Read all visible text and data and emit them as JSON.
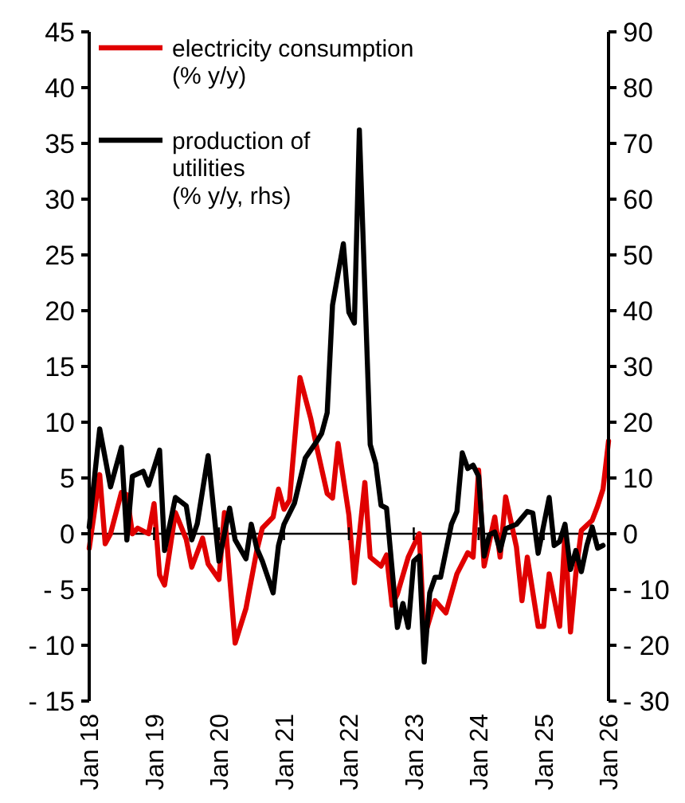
{
  "chart_data": {
    "type": "line",
    "legend": "top left",
    "grid": false,
    "marker": "none",
    "line_style": "solid",
    "xlim": [
      "2018-01",
      "2026-01"
    ],
    "xticks": [
      {
        "value": "2018-01",
        "label": "Jan 18"
      },
      {
        "value": "2019-01",
        "label": "Jan 19"
      },
      {
        "value": "2020-01",
        "label": "Jan 20"
      },
      {
        "value": "2021-01",
        "label": "Jan 21"
      },
      {
        "value": "2022-01",
        "label": "Jan 22"
      },
      {
        "value": "2023-01",
        "label": "Jan 23"
      },
      {
        "value": "2024-01",
        "label": "Jan 24"
      },
      {
        "value": "2025-01",
        "label": "Jan 25"
      },
      {
        "value": "2026-01",
        "label": "Jan 26"
      }
    ],
    "ylim": [
      -15,
      45
    ],
    "yticks": [
      {
        "value": -15,
        "label": "- 15"
      },
      {
        "value": -10,
        "label": "- 10"
      },
      {
        "value": -5,
        "label": "- 5"
      },
      0,
      5,
      10,
      15,
      20,
      25,
      30,
      35,
      40,
      45
    ],
    "y2lim": [
      -30,
      90
    ],
    "y2ticks": [
      {
        "value": -30,
        "label": "- 30"
      },
      {
        "value": -20,
        "label": "- 20"
      },
      {
        "value": -10,
        "label": "- 10"
      },
      0,
      10,
      20,
      30,
      40,
      50,
      60,
      70,
      80,
      90
    ],
    "ref_lines": [
      {
        "axis": "y",
        "value": 0,
        "color": "#000000"
      }
    ],
    "series": [
      {
        "name": "electricity consumption\n(% y/y)",
        "color": "#e00000",
        "x": [
          "2018-01",
          "2018-03",
          "2018-04",
          "2018-05",
          "2018-07",
          "2018-08",
          "2018-09",
          "2018-10",
          "2018-12",
          "2019-01",
          "2019-02",
          "2019-03",
          "2019-05",
          "2019-07",
          "2019-08",
          "2019-10",
          "2019-11",
          "2020-01",
          "2020-02",
          "2020-04",
          "2020-06",
          "2020-08",
          "2020-09",
          "2020-11",
          "2020-12",
          "2021-01",
          "2021-02",
          "2021-04",
          "2021-06",
          "2021-07",
          "2021-09",
          "2021-10",
          "2021-11",
          "2022-01",
          "2022-02",
          "2022-04",
          "2022-05",
          "2022-07",
          "2022-08",
          "2022-09",
          "2022-10",
          "2022-12",
          "2023-02",
          "2023-03",
          "2023-05",
          "2023-07",
          "2023-09",
          "2023-11",
          "2023-12",
          "2024-01",
          "2024-02",
          "2024-04",
          "2024-05",
          "2024-06",
          "2024-08",
          "2024-09",
          "2024-10",
          "2024-12",
          "2025-01",
          "2025-02",
          "2025-04",
          "2025-05",
          "2025-06",
          "2025-07",
          "2025-08",
          "2025-10",
          "2025-11",
          "2025-12",
          "2026-01"
        ],
        "values": [
          -1.3,
          5.3,
          -0.9,
          0,
          3.7,
          3.5,
          0,
          0.5,
          0,
          2.7,
          -3.7,
          -4.6,
          1.9,
          -0.5,
          -3,
          -0.4,
          -2.7,
          -4.1,
          1.9,
          -9.8,
          -6.7,
          -1.5,
          0.5,
          1.5,
          4,
          2.2,
          3,
          14,
          10.3,
          8,
          3.6,
          3.2,
          8.1,
          1.7,
          -4.4,
          4.6,
          -2.1,
          -2.9,
          -1.9,
          -6.4,
          -5.4,
          -2.1,
          0,
          -9.3,
          -6,
          -7.1,
          -3.6,
          -1.7,
          -2.1,
          5.7,
          -2.9,
          1.5,
          -2.1,
          3.3,
          -1.2,
          -6,
          -2.1,
          -8.3,
          -8.3,
          -3.6,
          -8.3,
          0,
          -8.8,
          -3.6,
          0.3,
          1.2,
          2.5,
          4,
          8.3
        ]
      },
      {
        "name": "production of\nutilities\n(% y/y, rhs)",
        "color": "#000000",
        "axis": "y2",
        "x": [
          "2018-01",
          "2018-03",
          "2018-05",
          "2018-07",
          "2018-08",
          "2018-09",
          "2018-11",
          "2018-12",
          "2019-02",
          "2019-03",
          "2019-05",
          "2019-07",
          "2019-08",
          "2019-09",
          "2019-11",
          "2020-01",
          "2020-03",
          "2020-04",
          "2020-06",
          "2020-07",
          "2020-08",
          "2020-09",
          "2020-11",
          "2020-12",
          "2021-01",
          "2021-03",
          "2021-05",
          "2021-07",
          "2021-08",
          "2021-09",
          "2021-10",
          "2021-12",
          "2022-01",
          "2022-02",
          "2022-03",
          "2022-05",
          "2022-06",
          "2022-07",
          "2022-08",
          "2022-10",
          "2022-11",
          "2022-12",
          "2023-01",
          "2023-02",
          "2023-03",
          "2023-04",
          "2023-05",
          "2023-06",
          "2023-08",
          "2023-09",
          "2023-10",
          "2023-11",
          "2023-12",
          "2024-01",
          "2024-02",
          "2024-03",
          "2024-04",
          "2024-05",
          "2024-06",
          "2024-08",
          "2024-10",
          "2024-11",
          "2024-12",
          "2025-02",
          "2025-03",
          "2025-04",
          "2025-05",
          "2025-06",
          "2025-07",
          "2025-08",
          "2025-09",
          "2025-10",
          "2025-11",
          "2025-12"
        ],
        "values": [
          1.2,
          18.8,
          8.4,
          15.5,
          -1.1,
          10.3,
          11.2,
          8.7,
          15,
          -3,
          6.5,
          5,
          -1.1,
          1.8,
          14,
          -4.9,
          4.6,
          -1.1,
          -4.5,
          1.7,
          -2.6,
          -4.9,
          -10.6,
          -2.1,
          1.7,
          5.5,
          13.6,
          16.4,
          18,
          21.7,
          41,
          52,
          39.7,
          37.8,
          72.4,
          16,
          12.6,
          5.1,
          4.6,
          -16.8,
          -12.5,
          -16.8,
          -4.9,
          -4,
          -23,
          -10.6,
          -7.8,
          -7.8,
          1.7,
          4,
          14.5,
          11.7,
          12.3,
          10.3,
          -4,
          -0.2,
          0.3,
          -3,
          0.9,
          1.7,
          4,
          3.7,
          -3.5,
          6.5,
          -2.1,
          -1.4,
          1.7,
          -6.4,
          -3,
          -6.8,
          -2.1,
          1.2,
          -2.6,
          -2.1
        ]
      }
    ]
  }
}
